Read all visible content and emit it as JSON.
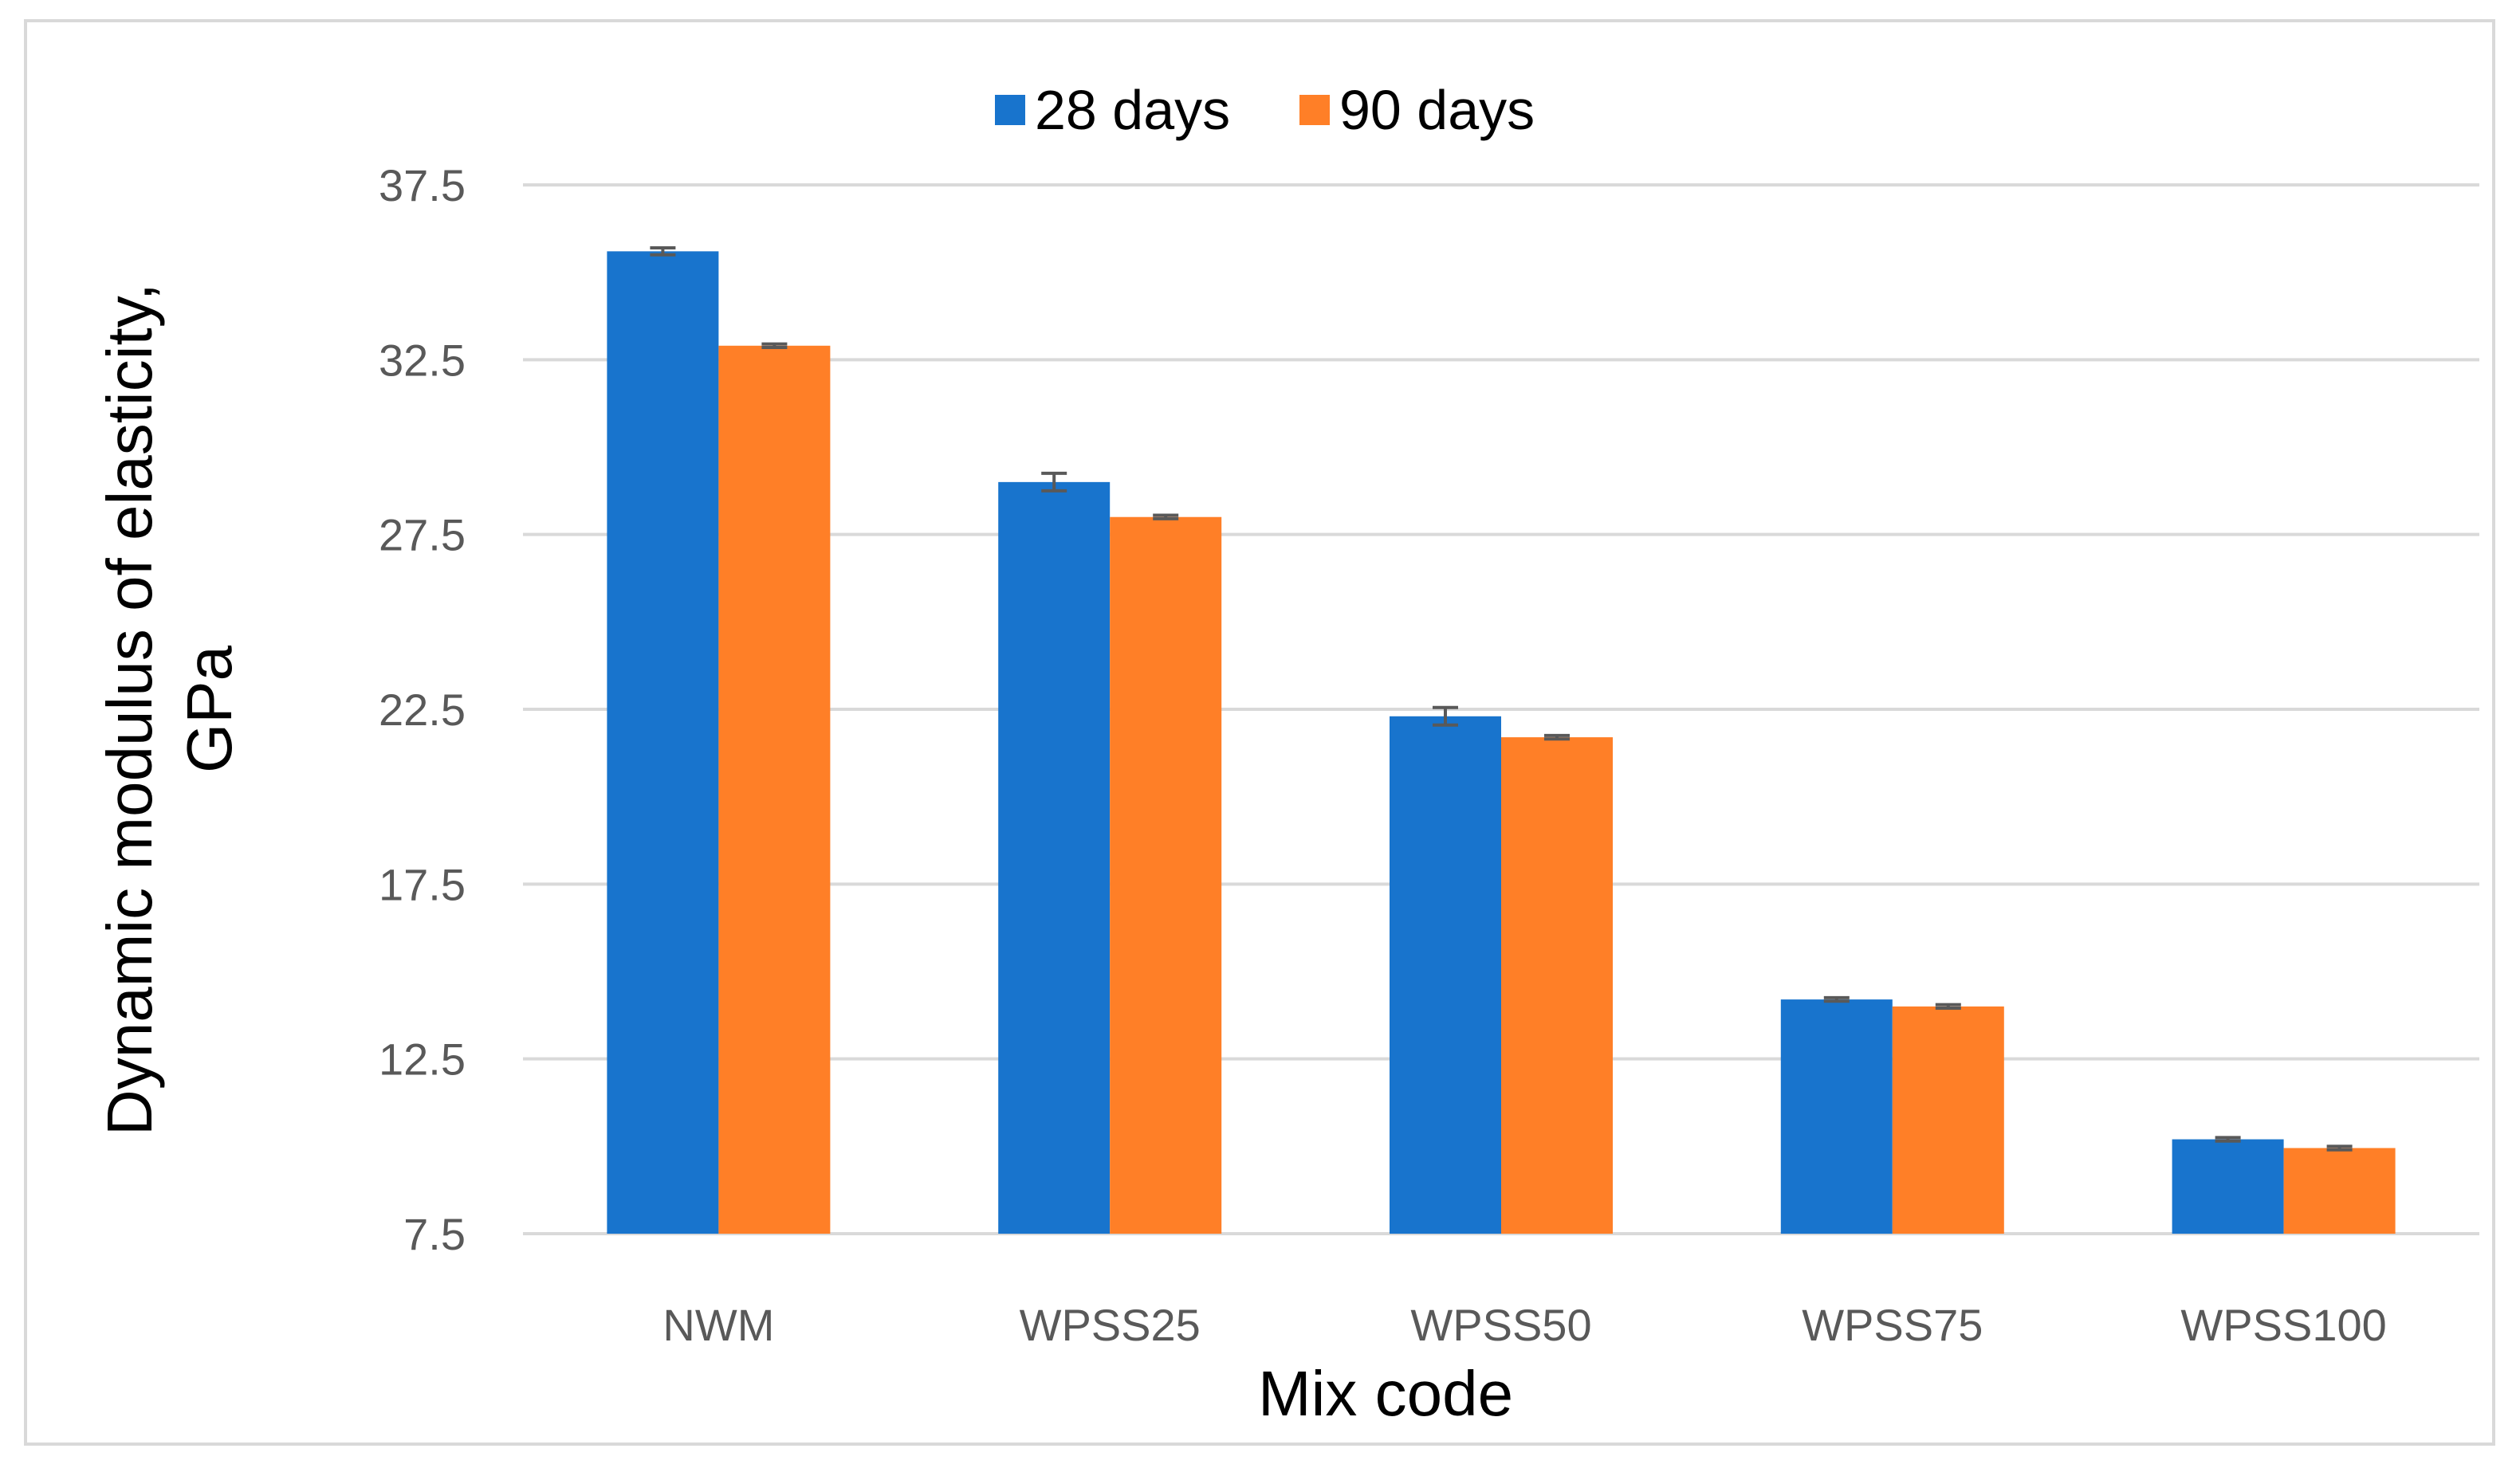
{
  "chart_data": {
    "type": "bar",
    "title": "",
    "xlabel": "Mix code",
    "ylabel_lines": [
      "Dynamic modulus of elasticity,",
      "GPa"
    ],
    "ylim": [
      7.5,
      37.5
    ],
    "yticks": [
      "7.5",
      "12.5",
      "17.5",
      "22.5",
      "27.5",
      "32.5",
      "37.5"
    ],
    "grid": true,
    "legend_position": "top-center",
    "categories": [
      "NWM",
      "WPSS25",
      "WPSS50",
      "WPSS75",
      "WPSS100"
    ],
    "series": [
      {
        "name": "28 days",
        "color": "#1874CD",
        "values": [
          35.6,
          29.0,
          22.3,
          14.2,
          10.2
        ],
        "errors": [
          0.1,
          0.25,
          0.25,
          0.05,
          0.05
        ]
      },
      {
        "name": "90 days",
        "color": "#FF7F27",
        "values": [
          32.9,
          28.0,
          21.7,
          14.0,
          9.95
        ],
        "errors": [
          0.05,
          0.05,
          0.05,
          0.05,
          0.05
        ]
      }
    ],
    "gridline_color": "#d9d9d9",
    "error_bar_color": "#595959"
  }
}
